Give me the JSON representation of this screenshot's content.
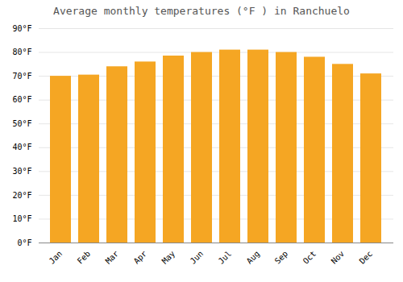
{
  "chart_data": {
    "type": "bar",
    "title": "Average monthly temperatures (°F ) in Ranchuelo",
    "categories": [
      "Jan",
      "Feb",
      "Mar",
      "Apr",
      "May",
      "Jun",
      "Jul",
      "Aug",
      "Sep",
      "Oct",
      "Nov",
      "Dec"
    ],
    "values": [
      70,
      70.5,
      74,
      76,
      78.5,
      80,
      81,
      81,
      80,
      78,
      75,
      71
    ],
    "color": "#F5A623",
    "ylim": [
      0,
      90
    ],
    "yticks": [
      {
        "value": 0,
        "label": "0°F"
      },
      {
        "value": 10,
        "label": "10°F"
      },
      {
        "value": 20,
        "label": "20°F"
      },
      {
        "value": 30,
        "label": "30°F"
      },
      {
        "value": 40,
        "label": "40°F"
      },
      {
        "value": 50,
        "label": "50°F"
      },
      {
        "value": 60,
        "label": "60°F"
      },
      {
        "value": 70,
        "label": "70°F"
      },
      {
        "value": 80,
        "label": "80°F"
      },
      {
        "value": 90,
        "label": "90°F"
      }
    ],
    "grid": true
  }
}
